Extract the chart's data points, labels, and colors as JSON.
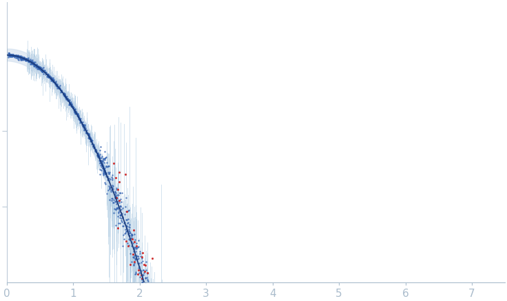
{
  "xlim": [
    0,
    7.5
  ],
  "ylim_log": [
    -3,
    0.7
  ],
  "xlabel_ticks": [
    0,
    1,
    2,
    3,
    4,
    5,
    6,
    7
  ],
  "background_color": "#ffffff",
  "spine_color": "#aabccc",
  "tick_color": "#aabccc",
  "curve_color": "#1a3a7a",
  "scatter_blue_color": "#3060b0",
  "scatter_red_color": "#cc2222",
  "error_bar_color": "#aac8e0",
  "error_fill_color": "#ccdcec",
  "seed": 42,
  "Rg": 2.2,
  "n_scatter": 3000,
  "n_red": 400
}
